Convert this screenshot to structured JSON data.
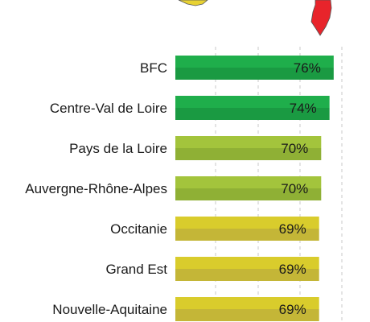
{
  "chart_data": {
    "type": "bar",
    "orientation": "horizontal",
    "categories": [
      "BFC",
      "Centre-Val de Loire",
      "Pays de la Loire",
      "Auvergne-Rhône-Alpes",
      "Occitanie",
      "Grand Est",
      "Nouvelle-Aquitaine"
    ],
    "values": [
      76,
      74,
      70,
      70,
      69,
      69,
      69
    ],
    "value_labels": [
      "76%",
      "74%",
      "70%",
      "70%",
      "69%",
      "69%",
      "69%"
    ],
    "bar_colors": [
      "#1fae4b",
      "#1fae4b",
      "#a3c43c",
      "#a3c43c",
      "#d9cc2c",
      "#d9cc2c",
      "#d9cc2c"
    ],
    "bar_shade_colors": [
      "#1a9a42",
      "#1a9a42",
      "#8fb035",
      "#8fb035",
      "#c4b637",
      "#c4b637",
      "#c4b637"
    ],
    "grid": true,
    "grid_style": "dashed vertical",
    "legend": "none",
    "title": "",
    "xlabel": "",
    "ylabel": "",
    "map_icons": [
      {
        "name": "map-shape-icon",
        "color": "#e8d233"
      },
      {
        "name": "corsica-map-icon",
        "color": "#e8242b"
      }
    ]
  }
}
